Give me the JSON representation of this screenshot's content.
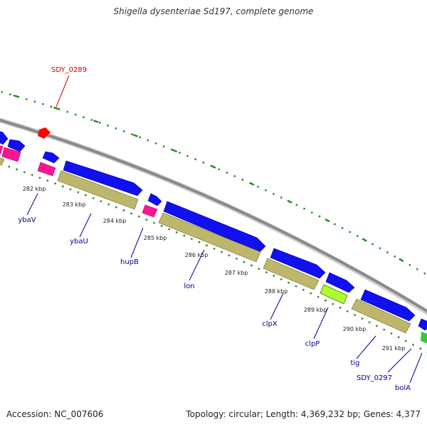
{
  "title": "Shigella dysenteriae Sd197, complete genome",
  "footer": {
    "accession": "Accession: NC_007606",
    "summary": "Topology: circular; Length: 4,369,232 bp; Genes: 4,377"
  },
  "colors": {
    "backbone": "#8a8a8a",
    "cds_forward": "#1010f0",
    "cds_reverse": "#bdb76b",
    "pseudo": "#ff1493",
    "rna": "#32cd32",
    "highlight": "#adff2f",
    "selected": "#ff0000",
    "dots": "#2e8b2e",
    "gene_label": "#00009c",
    "selected_label": "#cc0000"
  },
  "ticks": [
    {
      "label": "282 kbp"
    },
    {
      "label": "283 kbp"
    },
    {
      "label": "284 kbp"
    },
    {
      "label": "285 kbp"
    },
    {
      "label": "286 kbp"
    },
    {
      "label": "287 kbp"
    },
    {
      "label": "288 kbp"
    },
    {
      "label": "289 kbp"
    },
    {
      "label": "290 kbp"
    },
    {
      "label": "291 kbp"
    }
  ],
  "gene_labels": [
    {
      "label": "ybaV"
    },
    {
      "label": "ybaU"
    },
    {
      "label": "hupB"
    },
    {
      "label": "lon"
    },
    {
      "label": "clpX"
    },
    {
      "label": "clpP"
    },
    {
      "label": "tig"
    },
    {
      "label": "SDY_0297"
    },
    {
      "label": "bolA"
    }
  ],
  "selected_label": {
    "label": "SDY_0289"
  }
}
